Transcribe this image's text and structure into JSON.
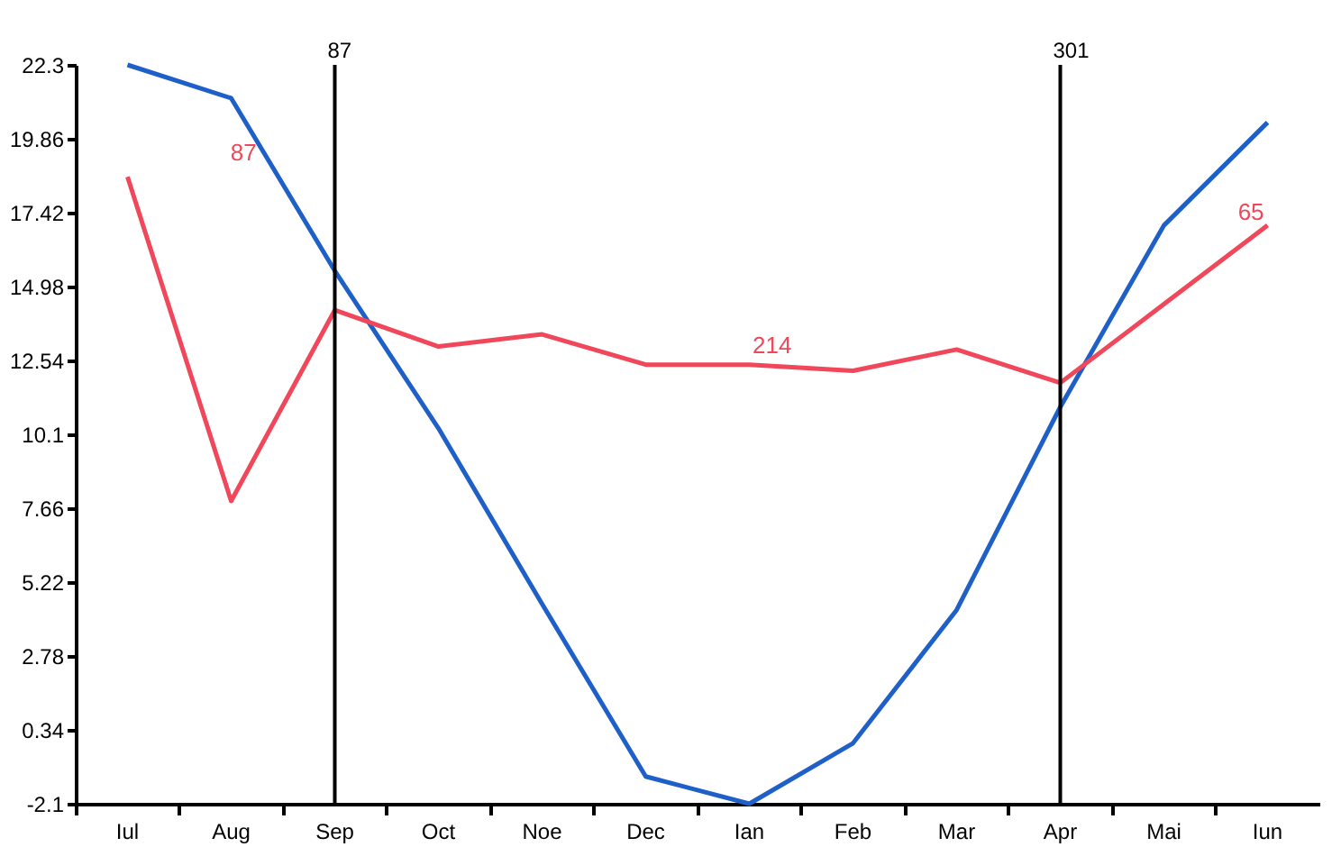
{
  "chart_data": {
    "type": "line",
    "categories": [
      "Iul",
      "Aug",
      "Sep",
      "Oct",
      "Noe",
      "Dec",
      "Ian",
      "Feb",
      "Mar",
      "Apr",
      "Mai",
      "Iun"
    ],
    "series": [
      {
        "color": "#1f5fc8",
        "values": [
          22.3,
          21.2,
          15.5,
          10.3,
          4.5,
          -1.2,
          -2.1,
          -0.1,
          4.3,
          11.0,
          17.0,
          20.4
        ]
      },
      {
        "color": "#f0485a",
        "values": [
          18.6,
          7.9,
          14.2,
          13.0,
          13.4,
          12.4,
          12.4,
          12.2,
          12.9,
          11.8,
          14.4,
          17.0
        ]
      }
    ],
    "ylim": [
      -2.1,
      22.3
    ],
    "yticks": [
      -2.1,
      0.34,
      2.78,
      5.22,
      7.66,
      10.1,
      12.54,
      14.98,
      17.42,
      19.86,
      22.3
    ],
    "ref_lines": [
      {
        "axis": "x",
        "value": "Sep",
        "label": "87",
        "color": "#000000"
      },
      {
        "axis": "x",
        "value": "Apr",
        "label": "301",
        "color": "#000000"
      }
    ],
    "annotations": [
      "87",
      "214",
      "65"
    ],
    "marker": "none",
    "line_style": "solid"
  }
}
